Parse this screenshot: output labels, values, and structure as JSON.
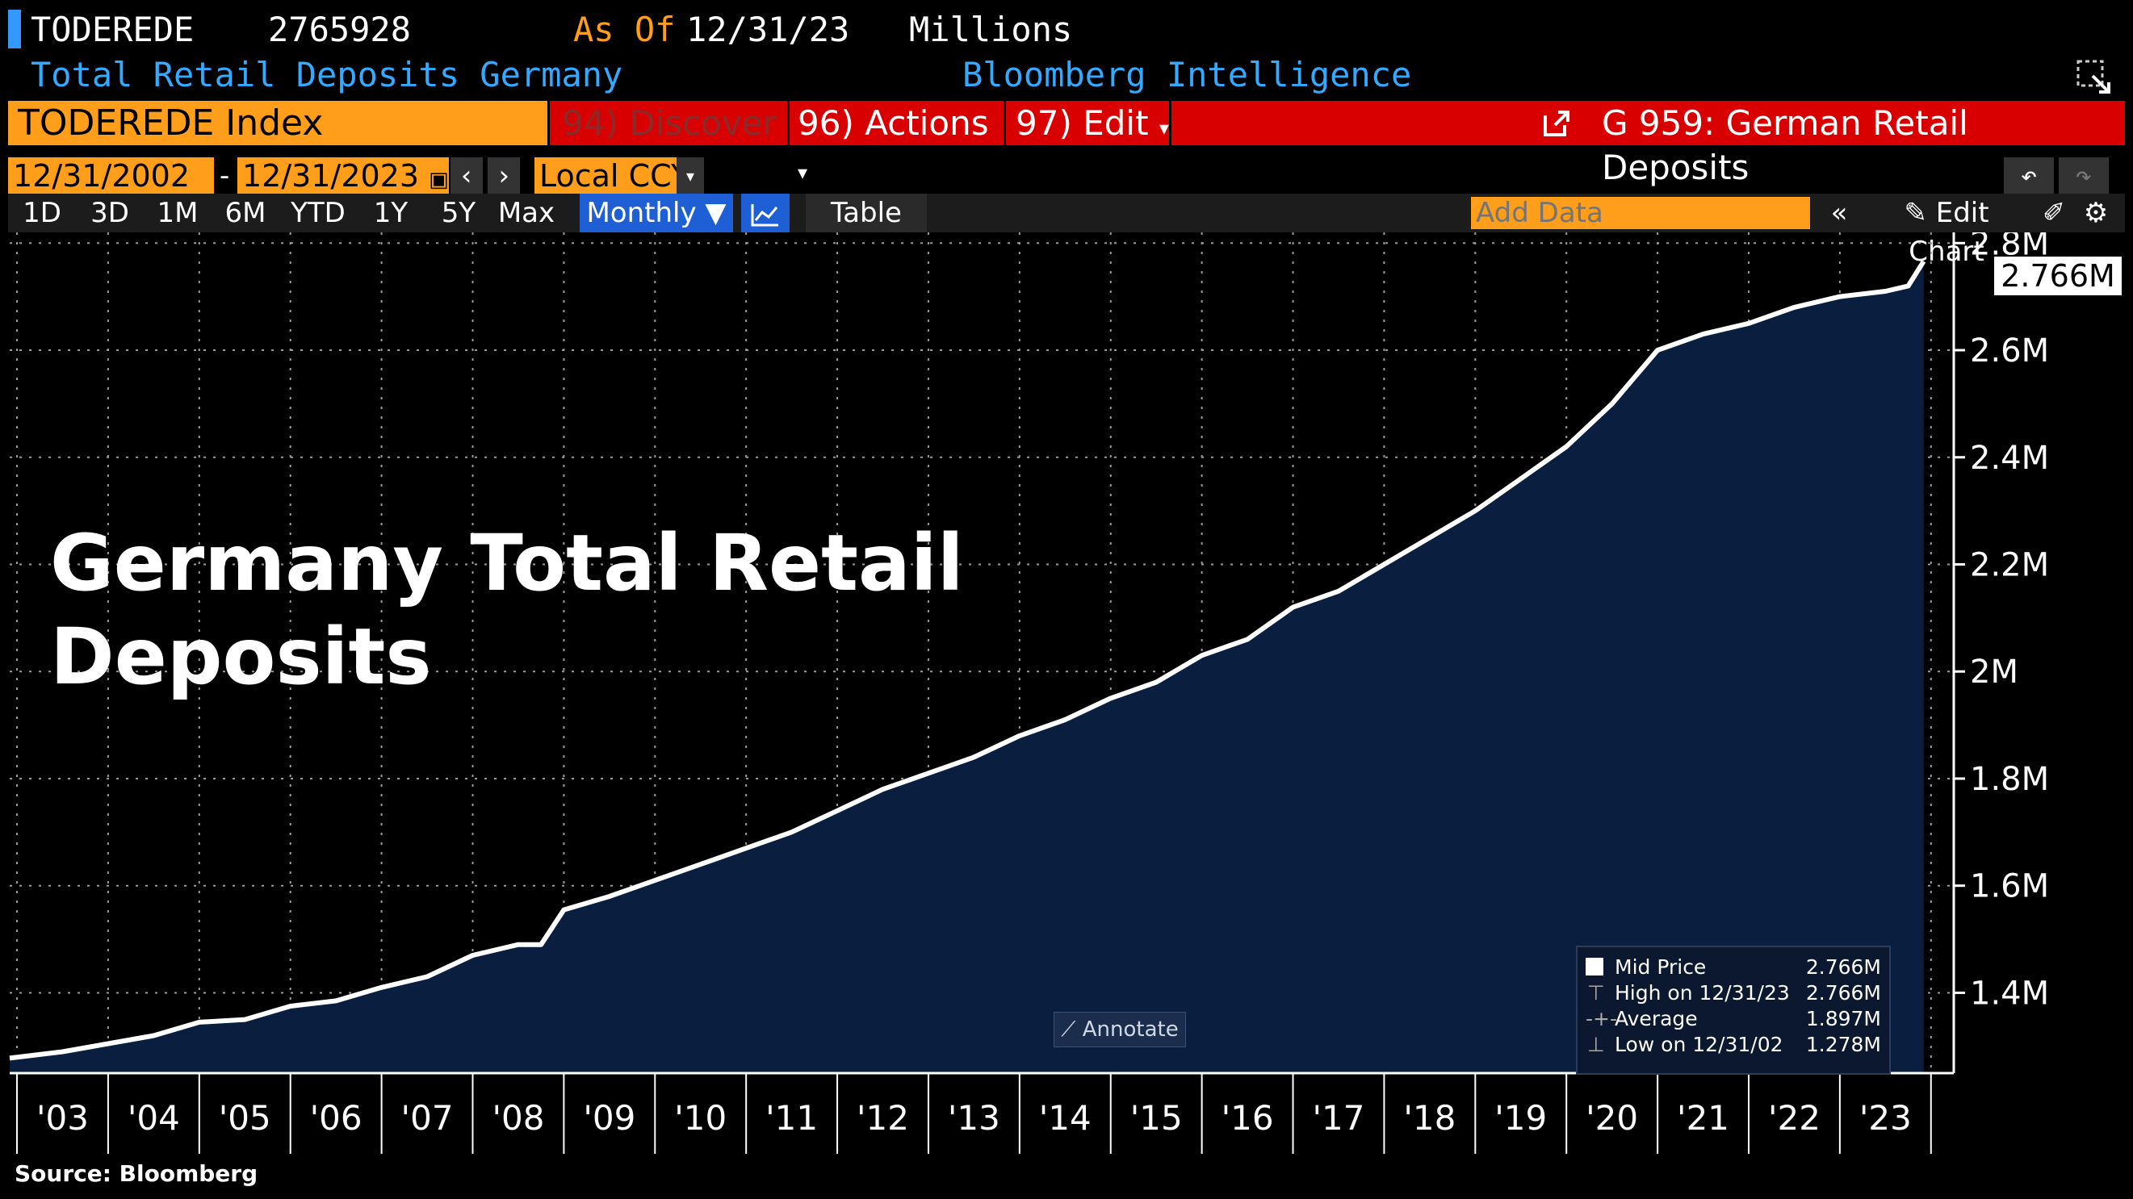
{
  "header": {
    "ticker": "TODEREDE",
    "last_value": "2765928",
    "as_of_label": "As Of",
    "as_of_date": "12/31/23",
    "units": "Millions",
    "description": "Total Retail Deposits Germany",
    "provider": "Bloomberg Intelligence"
  },
  "menu": {
    "security": "TODEREDE Index",
    "discover_num": "94)",
    "discover_label": "Discover",
    "actions_num": "96)",
    "actions_label": "Actions",
    "edit_num": "97)",
    "edit_label": "Edit",
    "graph_title": "G 959: German Retail Deposits"
  },
  "controls": {
    "start_date": "12/31/2002",
    "date_sep": "-",
    "end_date": "12/31/2023",
    "currency": "Local CCY",
    "ranges": [
      "1D",
      "3D",
      "1M",
      "6M",
      "YTD",
      "1Y",
      "5Y",
      "Max"
    ],
    "frequency": "Monthly",
    "table_label": "Table",
    "add_data_placeholder": "Add Data",
    "edit_chart_label": "Edit Chart"
  },
  "overlay_title_line1": "Germany Total Retail",
  "overlay_title_line2": "Deposits",
  "source": "Source: Bloomberg",
  "annotate_label": "Annotate",
  "legend": {
    "rows": [
      {
        "label": "Mid Price",
        "value": "2.766M"
      },
      {
        "label": "High on 12/31/23",
        "value": "2.766M"
      },
      {
        "label": "Average",
        "value": "1.897M"
      },
      {
        "label": "Low on 12/31/02",
        "value": "1.278M"
      }
    ]
  },
  "last_price_tag": "2.766M",
  "colors": {
    "accent_orange": "#ff9e1b",
    "menu_red": "#d80000",
    "area_fill": "#0a1f3f",
    "line": "#ffffff"
  },
  "chart_data": {
    "type": "area",
    "title": "Germany Total Retail Deposits",
    "xlabel": "",
    "ylabel": "",
    "x_tick_labels": [
      "'03",
      "'04",
      "'05",
      "'06",
      "'07",
      "'08",
      "'09",
      "'10",
      "'11",
      "'12",
      "'13",
      "'14",
      "'15",
      "'16",
      "'17",
      "'18",
      "'19",
      "'20",
      "'21",
      "'22",
      "'23"
    ],
    "y_tick_labels": [
      "2.8M",
      "2.6M",
      "2.4M",
      "2.2M",
      "2M",
      "1.8M",
      "1.6M",
      "1.4M"
    ],
    "y_ticks": [
      2.8,
      2.6,
      2.4,
      2.2,
      2.0,
      1.8,
      1.6,
      1.4
    ],
    "ylim": [
      1.25,
      2.82
    ],
    "xlim": [
      2002.92,
      2024.25
    ],
    "grid": true,
    "legend_position": "bottom-right",
    "series": [
      {
        "name": "Mid Price",
        "x": [
          2002.92,
          2003.5,
          2004.0,
          2004.5,
          2005.0,
          2005.5,
          2006.0,
          2006.5,
          2007.0,
          2007.5,
          2008.0,
          2008.5,
          2008.75,
          2009.0,
          2009.5,
          2010.0,
          2010.5,
          2011.0,
          2011.5,
          2012.0,
          2012.5,
          2013.0,
          2013.5,
          2014.0,
          2014.5,
          2015.0,
          2015.5,
          2016.0,
          2016.5,
          2017.0,
          2017.5,
          2018.0,
          2018.5,
          2019.0,
          2019.5,
          2020.0,
          2020.5,
          2021.0,
          2021.5,
          2022.0,
          2022.5,
          2023.0,
          2023.5,
          2023.75,
          2023.92
        ],
        "values": [
          1.278,
          1.29,
          1.305,
          1.32,
          1.345,
          1.35,
          1.375,
          1.385,
          1.41,
          1.43,
          1.47,
          1.49,
          1.49,
          1.555,
          1.58,
          1.61,
          1.64,
          1.67,
          1.7,
          1.74,
          1.78,
          1.81,
          1.84,
          1.88,
          1.91,
          1.95,
          1.98,
          2.03,
          2.06,
          2.12,
          2.15,
          2.2,
          2.25,
          2.3,
          2.36,
          2.42,
          2.5,
          2.6,
          2.63,
          2.65,
          2.68,
          2.7,
          2.71,
          2.72,
          2.766
        ]
      }
    ]
  }
}
